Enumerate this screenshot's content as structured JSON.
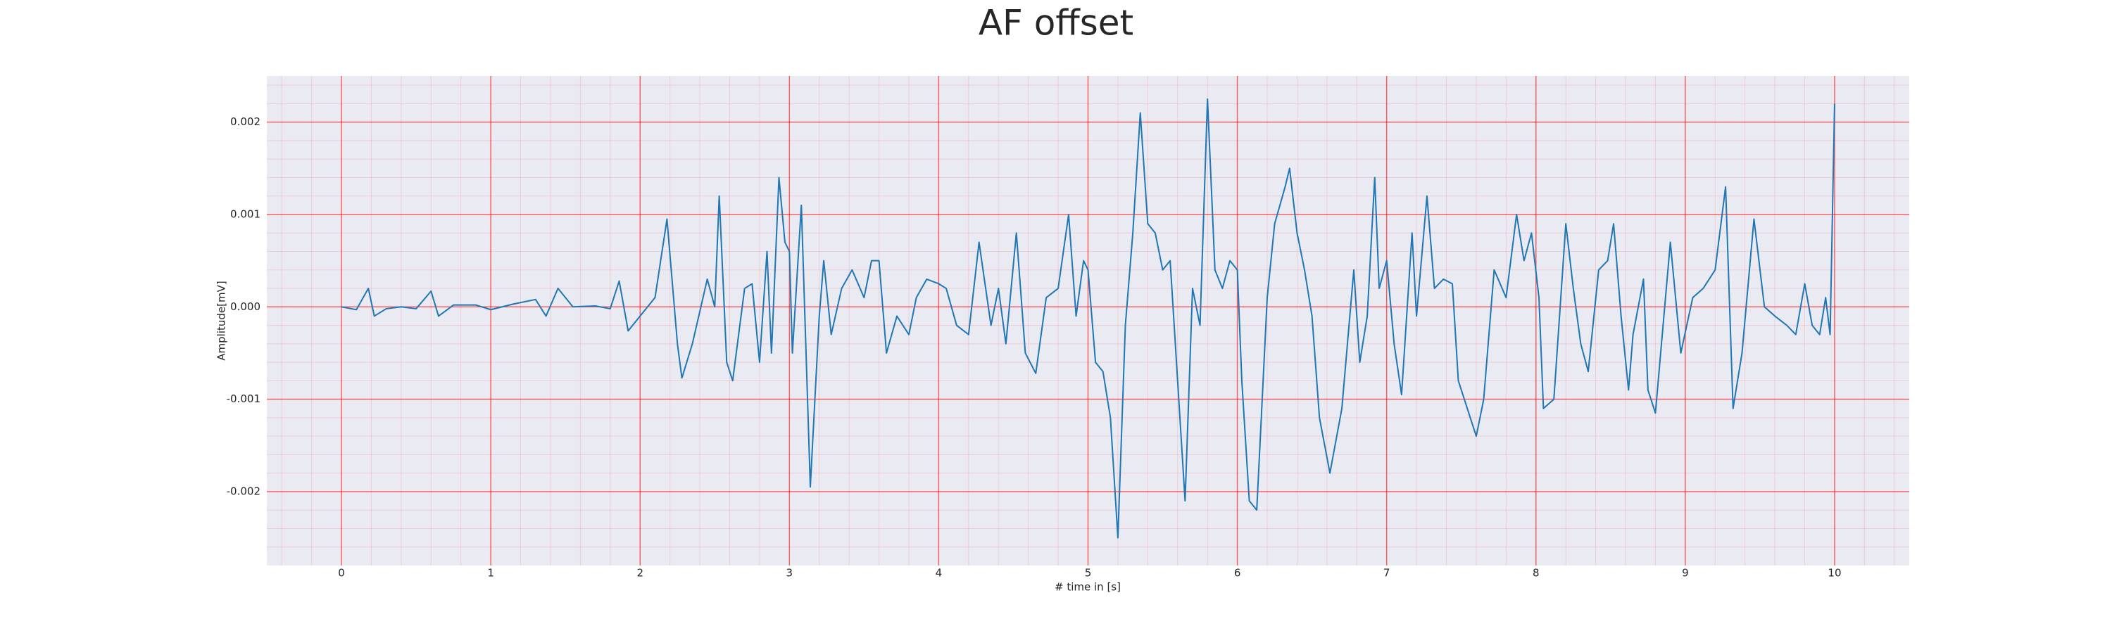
{
  "chart_data": {
    "type": "line",
    "title": "AF offset",
    "x_label": "# time in [s]",
    "y_label": "Amplitude[mV]",
    "xlim": [
      -0.5,
      10.5
    ],
    "xticks": [
      0,
      1,
      2,
      3,
      4,
      5,
      6,
      7,
      8,
      9,
      10
    ],
    "ylim": [
      -0.0028,
      0.0025
    ],
    "yticks": [
      -0.002,
      -0.001,
      {
        "value": 0,
        "label": "0.000"
      },
      0.001,
      0.002
    ],
    "grid": true,
    "minor_grid": true,
    "grid_color": "#ff0000",
    "background": "#eaeaf2",
    "series": [
      {
        "name": "AF offset",
        "color": "#1f77b4",
        "x": [
          0,
          0.1,
          0.18,
          0.22,
          0.3,
          0.4,
          0.5,
          0.6,
          0.65,
          0.75,
          0.9,
          1.0,
          1.15,
          1.3,
          1.37,
          1.45,
          1.55,
          1.7,
          1.8,
          1.86,
          1.92,
          2.0,
          2.1,
          2.18,
          2.25,
          2.28,
          2.35,
          2.45,
          2.5,
          2.53,
          2.58,
          2.62,
          2.7,
          2.75,
          2.8,
          2.85,
          2.88,
          2.93,
          2.97,
          3.0,
          3.02,
          3.08,
          3.14,
          3.2,
          3.23,
          3.28,
          3.35,
          3.42,
          3.5,
          3.55,
          3.6,
          3.65,
          3.72,
          3.8,
          3.85,
          3.92,
          4.0,
          4.05,
          4.12,
          4.2,
          4.27,
          4.35,
          4.4,
          4.45,
          4.52,
          4.58,
          4.65,
          4.72,
          4.8,
          4.87,
          4.92,
          4.97,
          5.0,
          5.05,
          5.1,
          5.15,
          5.2,
          5.25,
          5.3,
          5.35,
          5.4,
          5.45,
          5.5,
          5.55,
          5.6,
          5.65,
          5.7,
          5.75,
          5.8,
          5.85,
          5.9,
          5.95,
          6.0,
          6.03,
          6.08,
          6.13,
          6.2,
          6.25,
          6.32,
          6.35,
          6.4,
          6.45,
          6.5,
          6.55,
          6.62,
          6.7,
          6.78,
          6.82,
          6.87,
          6.92,
          6.95,
          7.0,
          7.05,
          7.1,
          7.17,
          7.2,
          7.27,
          7.32,
          7.38,
          7.44,
          7.48,
          7.6,
          7.65,
          7.72,
          7.8,
          7.87,
          7.92,
          7.97,
          8.02,
          8.05,
          8.12,
          8.2,
          8.25,
          8.3,
          8.35,
          8.42,
          8.48,
          8.52,
          8.57,
          8.62,
          8.65,
          8.72,
          8.75,
          8.8,
          8.9,
          8.97,
          9.05,
          9.12,
          9.2,
          9.27,
          9.32,
          9.38,
          9.46,
          9.53,
          9.6,
          9.68,
          9.74,
          9.8,
          9.85,
          9.9,
          9.94,
          9.97,
          10.0
        ],
        "values": [
          0,
          -3e-05,
          0.0002,
          -0.0001,
          -2e-05,
          0,
          -2e-05,
          0.00017,
          -0.0001,
          2e-05,
          2e-05,
          -3e-05,
          3e-05,
          8e-05,
          -0.0001,
          0.0002,
          0,
          1e-05,
          -2e-05,
          0.00028,
          -0.00026,
          -0.0001,
          0.0001,
          0.00095,
          -0.0004,
          -0.00077,
          -0.0004,
          0.0003,
          0,
          0.0012,
          -0.0006,
          -0.0008,
          0.0002,
          0.00025,
          -0.0006,
          0.0006,
          -0.0005,
          0.0014,
          0.0007,
          0.0006,
          -0.0005,
          0.0011,
          -0.00195,
          -0.0001,
          0.0005,
          -0.0003,
          0.0002,
          0.0004,
          0.0001,
          0.0005,
          0.0005,
          -0.0005,
          -0.0001,
          -0.0003,
          0.0001,
          0.0003,
          0.00025,
          0.0002,
          -0.0002,
          -0.0003,
          0.0007,
          -0.0002,
          0.0002,
          -0.0004,
          0.0008,
          -0.0005,
          -0.00072,
          0.0001,
          0.0002,
          0.001,
          -0.0001,
          0.0005,
          0.0004,
          -0.0006,
          -0.0007,
          -0.0012,
          -0.0025,
          -0.0002,
          0.0008,
          0.0021,
          0.0009,
          0.0008,
          0.0004,
          0.0005,
          -0.0008,
          -0.0021,
          0.0002,
          -0.0002,
          0.00225,
          0.0004,
          0.0002,
          0.0005,
          0.0004,
          -0.0008,
          -0.0021,
          -0.0022,
          0.0001,
          0.0009,
          0.0013,
          0.0015,
          0.0008,
          0.0004,
          -0.0001,
          -0.0012,
          -0.0018,
          -0.0011,
          0.0004,
          -0.0006,
          -0.0001,
          0.0014,
          0.0002,
          0.0005,
          -0.0004,
          -0.00095,
          0.0008,
          -0.0001,
          0.0012,
          0.0002,
          0.0003,
          0.00025,
          -0.0008,
          -0.0014,
          -0.001,
          0.0004,
          0.0001,
          0.001,
          0.0005,
          0.0008,
          0.0001,
          -0.0011,
          -0.001,
          0.0009,
          0.0002,
          -0.0004,
          -0.0007,
          0.0004,
          0.0005,
          0.0009,
          -0.0001,
          -0.0009,
          -0.0003,
          0.0003,
          -0.0009,
          -0.00115,
          0.0007,
          -0.0005,
          0.0001,
          0.0002,
          0.0004,
          0.0013,
          -0.0011,
          -0.0005,
          0.00095,
          0,
          -0.0001,
          -0.0002,
          -0.0003,
          0.00025,
          -0.0002,
          -0.0003,
          0.0001,
          -0.0003,
          0.0022
        ]
      }
    ]
  }
}
